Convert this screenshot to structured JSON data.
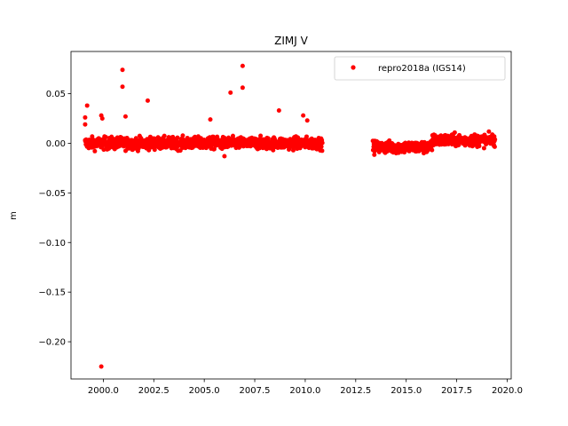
{
  "chart_data": {
    "type": "scatter",
    "title": "ZIMJ V",
    "xlabel": "",
    "ylabel": "m",
    "xlim": [
      1998.4,
      2020.2
    ],
    "ylim": [
      -0.2375,
      0.0925
    ],
    "xticks": [
      2000.0,
      2002.5,
      2005.0,
      2007.5,
      2010.0,
      2012.5,
      2015.0,
      2017.5,
      2020.0
    ],
    "xtick_labels": [
      "2000.0",
      "2002.5",
      "2005.0",
      "2007.5",
      "2010.0",
      "2012.5",
      "2015.0",
      "2017.5",
      "2020.0"
    ],
    "yticks": [
      0.05,
      0.0,
      -0.05,
      -0.1,
      -0.15,
      -0.2
    ],
    "ytick_labels": [
      "0.05",
      "0.00",
      "−0.05",
      "−0.10",
      "−0.15",
      "−0.20"
    ],
    "grid": false,
    "legend_position": "top-right",
    "series": [
      {
        "name": "repro2018a (IGS14)",
        "color": "#ff0000",
        "marker": "circle",
        "segments": [
          {
            "x_start": 1999.1,
            "x_end": 2010.85,
            "center": 0.0,
            "spread": 0.005
          },
          {
            "x_start": 2013.35,
            "x_end": 2016.3,
            "center": -0.004,
            "spread": 0.005
          },
          {
            "x_start": 2016.3,
            "x_end": 2019.4,
            "center": 0.003,
            "spread": 0.005
          }
        ],
        "outliers": [
          {
            "x": 1999.9,
            "y": -0.225
          },
          {
            "x": 1999.2,
            "y": 0.038
          },
          {
            "x": 1999.1,
            "y": 0.026
          },
          {
            "x": 1999.1,
            "y": 0.019
          },
          {
            "x": 1999.9,
            "y": 0.028
          },
          {
            "x": 1999.95,
            "y": 0.025
          },
          {
            "x": 2000.95,
            "y": 0.074
          },
          {
            "x": 2000.95,
            "y": 0.057
          },
          {
            "x": 2001.1,
            "y": 0.027
          },
          {
            "x": 2002.2,
            "y": 0.043
          },
          {
            "x": 2005.3,
            "y": 0.024
          },
          {
            "x": 2006.3,
            "y": 0.051
          },
          {
            "x": 2006.9,
            "y": 0.078
          },
          {
            "x": 2006.9,
            "y": 0.056
          },
          {
            "x": 2008.7,
            "y": 0.033
          },
          {
            "x": 2009.9,
            "y": 0.028
          },
          {
            "x": 2010.1,
            "y": 0.023
          },
          {
            "x": 2006.0,
            "y": -0.013
          }
        ]
      }
    ]
  }
}
